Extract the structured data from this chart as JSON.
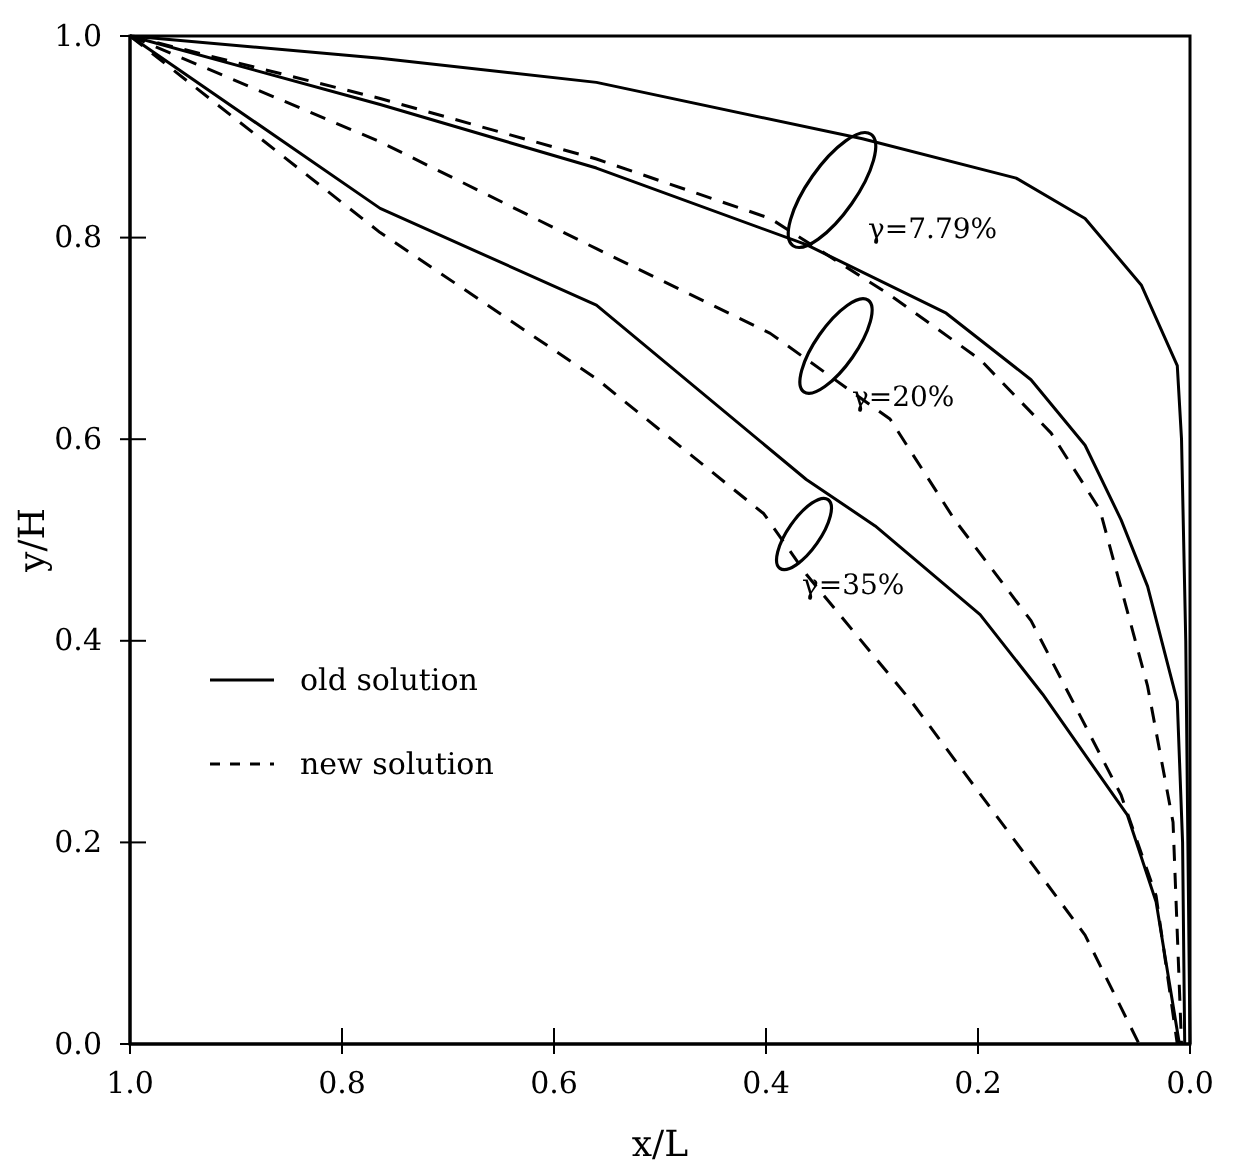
{
  "chart_data": {
    "type": "line",
    "xlabel": "x/L",
    "ylabel": "y/H",
    "xlim": [
      1.0,
      0.0
    ],
    "ylim": [
      0.0,
      1.0
    ],
    "xticks": [
      {
        "value": 1,
        "label": "1.0"
      },
      {
        "value": 0.8,
        "label": "0.8"
      },
      {
        "value": 0.6,
        "label": "0.6"
      },
      {
        "value": 0.4,
        "label": "0.4"
      },
      {
        "value": 0.2,
        "label": "0.2"
      },
      {
        "value": 0,
        "label": "0.0"
      }
    ],
    "yticks": [
      {
        "value": 0,
        "label": "0.0"
      },
      {
        "value": 0.2,
        "label": "0.2"
      },
      {
        "value": 0.4,
        "label": "0.4"
      },
      {
        "value": 0.6,
        "label": "0.6"
      },
      {
        "value": 0.8,
        "label": "0.8"
      },
      {
        "value": 1,
        "label": "1.0"
      }
    ],
    "grid": false,
    "legend": "center left",
    "marker": "none",
    "series": [
      {
        "name": "old solution",
        "color": "#000000",
        "line_style": "solid",
        "x": [
          1.0,
          0.764,
          0.56,
          0.309,
          0.164,
          0.099,
          0.046,
          0.012,
          0.008,
          0.004,
          0.002,
          0.0
        ],
        "values": [
          1.0,
          0.978,
          0.954,
          0.898,
          0.859,
          0.819,
          0.753,
          0.673,
          0.6,
          0.4,
          0.2,
          0.0
        ]
      },
      {
        "color": "#000000",
        "line_style": "solid",
        "x": [
          1.0,
          0.764,
          0.56,
          0.362,
          0.23,
          0.15,
          0.099,
          0.065,
          0.04,
          0.012,
          0.007,
          0.005
        ],
        "values": [
          1.0,
          0.932,
          0.869,
          0.793,
          0.725,
          0.659,
          0.594,
          0.52,
          0.454,
          0.34,
          0.2,
          0.0
        ]
      },
      {
        "color": "#000000",
        "line_style": "solid",
        "x": [
          1.0,
          0.764,
          0.56,
          0.362,
          0.297,
          0.198,
          0.139,
          0.059,
          0.032,
          0.01
        ],
        "values": [
          1.0,
          0.829,
          0.733,
          0.56,
          0.514,
          0.426,
          0.347,
          0.227,
          0.141,
          0.0
        ]
      },
      {
        "name": "new solution",
        "color": "#000000",
        "line_style": "dashed",
        "x": [
          1.0,
          0.764,
          0.56,
          0.396,
          0.283,
          0.198,
          0.131,
          0.085,
          0.04,
          0.016,
          0.008
        ],
        "values": [
          1.0,
          0.938,
          0.878,
          0.819,
          0.743,
          0.679,
          0.606,
          0.53,
          0.355,
          0.22,
          0.0
        ]
      },
      {
        "color": "#000000",
        "line_style": "dashed",
        "x": [
          1.0,
          0.764,
          0.56,
          0.396,
          0.283,
          0.222,
          0.15,
          0.065,
          0.032,
          0.012
        ],
        "values": [
          1.0,
          0.895,
          0.789,
          0.705,
          0.62,
          0.52,
          0.42,
          0.247,
          0.147,
          0.0
        ]
      },
      {
        "color": "#000000",
        "line_style": "dashed",
        "x": [
          1.0,
          0.764,
          0.56,
          0.402,
          0.362,
          0.263,
          0.164,
          0.099,
          0.048
        ],
        "values": [
          1.0,
          0.805,
          0.66,
          0.526,
          0.466,
          0.34,
          0.2,
          0.108,
          0.0
        ]
      }
    ],
    "annotations": [
      "γ=7.79%",
      "γ=20%",
      "γ=35%"
    ]
  }
}
